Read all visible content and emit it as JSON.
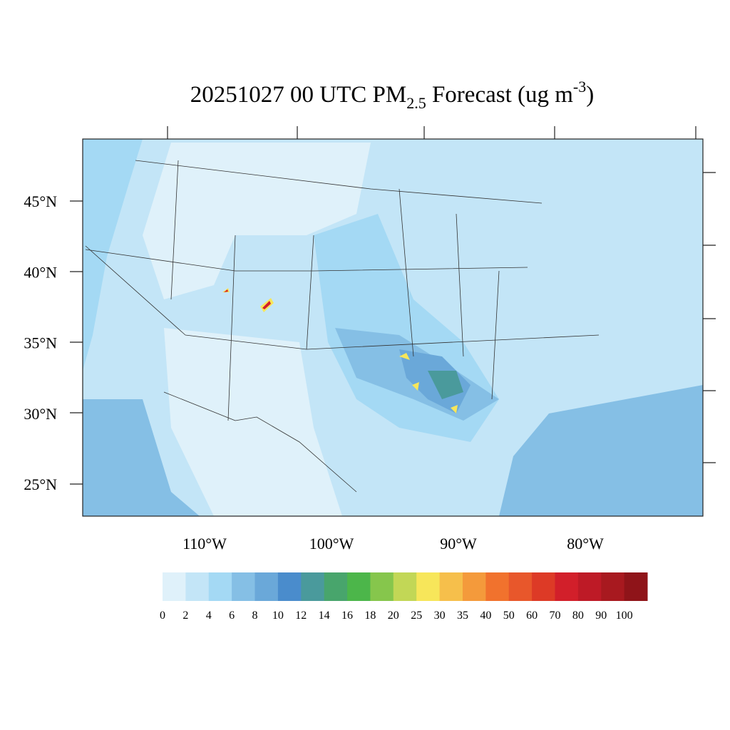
{
  "title": {
    "main": "20251027 00 UTC PM",
    "sub": "2.5",
    "mid": " Forecast (ug m",
    "sup": "-3",
    "end": ")"
  },
  "lat_labels": [
    "45°N",
    "40°N",
    "35°N",
    "30°N",
    "25°N"
  ],
  "lon_labels": [
    "110°W",
    "100°W",
    "90°W",
    "80°W"
  ],
  "colorbar": {
    "levels": [
      0,
      2,
      4,
      6,
      8,
      10,
      12,
      14,
      16,
      18,
      20,
      25,
      30,
      35,
      40,
      50,
      60,
      70,
      80,
      90,
      100
    ],
    "colors": [
      "#dff1fa",
      "#c3e5f7",
      "#a4d9f4",
      "#85bfe5",
      "#6aa8d9",
      "#4a8ccc",
      "#4a9a9c",
      "#48a56c",
      "#4cb64a",
      "#86c64c",
      "#c2d756",
      "#f7e65a",
      "#f6bf4b",
      "#f49a3b",
      "#f1722d",
      "#e8572b",
      "#dd3a26",
      "#d21f2a",
      "#be1a26",
      "#a8191f",
      "#8f1419"
    ]
  }
}
